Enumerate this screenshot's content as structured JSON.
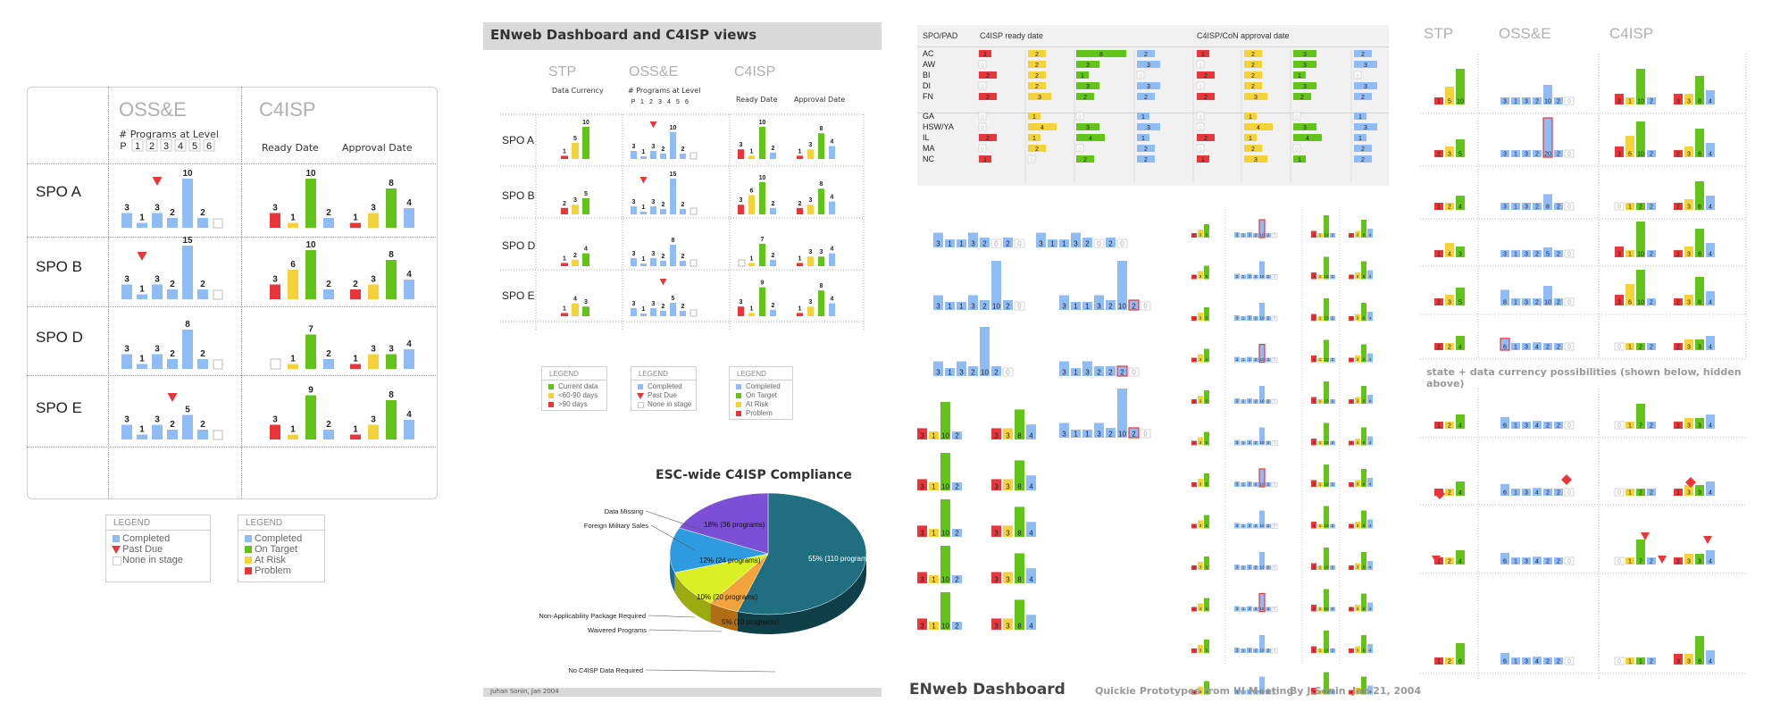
{
  "colors": {
    "blue": "#8fbcf4",
    "green": "#62c419",
    "yellow": "#f4d239",
    "red": "#e8363a",
    "teal": "#1f6f80",
    "purple": "#7b4fd6",
    "orange": "#f3a33c",
    "lime": "#d8f024",
    "gray": "#b0b0b0"
  },
  "panel1": {
    "headers": {
      "osse": "OSS&E",
      "c4isp": "C4ISP",
      "programs_at_level": "# Programs at Level",
      "levels": [
        "P",
        "1",
        "2",
        "3",
        "4",
        "5",
        "6"
      ],
      "ready": "Ready Date",
      "approval": "Approval Date"
    },
    "rows": [
      {
        "name": "SPO A",
        "osse": [
          3,
          1,
          3,
          2,
          10,
          2,
          0
        ],
        "past": 2,
        "ready": [
          3,
          1,
          10,
          2
        ],
        "approval": [
          1,
          3,
          8,
          4
        ]
      },
      {
        "name": "SPO B",
        "osse": [
          3,
          1,
          3,
          2,
          15,
          2,
          0
        ],
        "past": 1,
        "ready": [
          3,
          6,
          10,
          2
        ],
        "approval": [
          2,
          3,
          8,
          4
        ]
      },
      {
        "name": "SPO D",
        "osse": [
          3,
          1,
          3,
          2,
          8,
          2,
          0
        ],
        "past": -1,
        "ready": [
          0,
          1,
          7,
          2
        ],
        "approval": [
          1,
          3,
          3,
          4
        ]
      },
      {
        "name": "SPO E",
        "osse": [
          3,
          1,
          3,
          2,
          5,
          2,
          0
        ],
        "past": 3,
        "ready": [
          3,
          1,
          9,
          2
        ],
        "approval": [
          1,
          3,
          8,
          4
        ]
      }
    ],
    "legend1": {
      "title": "LEGEND",
      "items": [
        "Completed",
        "Past Due",
        "None in stage"
      ]
    },
    "legend2": {
      "title": "LEGEND",
      "items": [
        "Completed",
        "On Target",
        "At Risk",
        "Problem"
      ]
    }
  },
  "panel2": {
    "title": "ENweb Dashboard and C4ISP views",
    "headers": {
      "stp": "STP",
      "osse": "OSS&E",
      "c4isp": "C4ISP",
      "data_currency": "Data Currency",
      "programs_at_level": "# Programs at Level",
      "levels": [
        "P",
        "1",
        "2",
        "3",
        "4",
        "5",
        "6"
      ],
      "ready": "Ready Date",
      "approval": "Approval Date"
    },
    "rows": [
      {
        "name": "SPO A",
        "stp": [
          1,
          5,
          10
        ]
      },
      {
        "name": "SPO B",
        "stp": [
          2,
          3,
          5
        ]
      },
      {
        "name": "SPO D",
        "stp": [
          1,
          2,
          4
        ]
      },
      {
        "name": "SPO E",
        "stp": [
          1,
          4,
          3
        ]
      }
    ],
    "legend_stp": {
      "title": "LEGEND",
      "items": [
        "Current data",
        "<60-90 days",
        ">90 days"
      ]
    },
    "legend_osse": {
      "title": "LEGEND",
      "items": [
        "Completed",
        "Past Due",
        "None in stage"
      ]
    },
    "legend_c4isp": {
      "title": "LEGEND",
      "items": [
        "Completed",
        "On Target",
        "At Risk",
        "Problem"
      ]
    },
    "footer": "Juhan Sonin, Jan 2004"
  },
  "chart_data": {
    "type": "pie",
    "title": "ESC-wide C4ISP Compliance",
    "slices": [
      {
        "label": "No C4ISP Data Required",
        "percent": 55,
        "programs": 110,
        "text": "55% (110 programs)"
      },
      {
        "label": "Waivered Programs",
        "percent": 5,
        "programs": 10,
        "text": "5% (10 programs)"
      },
      {
        "label": "Non-Applicability Package Required",
        "percent": 10,
        "programs": 20,
        "text": "10% (20 programs)"
      },
      {
        "label": "Foreign Military Sales",
        "percent": 12,
        "programs": 24,
        "text": "12% (24 programs)"
      },
      {
        "label": "Data Missing",
        "percent": 18,
        "programs": 36,
        "text": "18% (36 programs)"
      }
    ]
  },
  "panel3": {
    "col_spo": "SPO/PAD",
    "col_ready": "C4ISP ready date",
    "col_approval": "C4ISP/CoN approval date",
    "rows": [
      {
        "name": "AC",
        "r": [
          1,
          2,
          8,
          2
        ],
        "a": [
          1,
          2,
          3,
          2
        ]
      },
      {
        "name": "AW",
        "r": [
          0,
          2,
          3,
          3
        ],
        "a": [
          0,
          2,
          3,
          3
        ]
      },
      {
        "name": "BI",
        "r": [
          2,
          2,
          1,
          0
        ],
        "a": [
          2,
          2,
          1,
          0
        ]
      },
      {
        "name": "DI",
        "r": [
          0,
          2,
          3,
          3
        ],
        "a": [
          0,
          2,
          3,
          3
        ]
      },
      {
        "name": "FN",
        "r": [
          2,
          3,
          2,
          2
        ],
        "a": [
          2,
          3,
          2,
          2
        ]
      },
      {
        "name": "GA",
        "r": [
          0,
          1,
          0,
          1
        ],
        "a": [
          0,
          1,
          0,
          1
        ]
      },
      {
        "name": "HSW/YA",
        "r": [
          0,
          4,
          3,
          3
        ],
        "a": [
          0,
          4,
          3,
          3
        ]
      },
      {
        "name": "IL",
        "r": [
          2,
          1,
          4,
          1
        ],
        "a": [
          2,
          1,
          4,
          1
        ]
      },
      {
        "name": "MA",
        "r": [
          0,
          2,
          0,
          2
        ],
        "a": [
          0,
          2,
          0,
          2
        ]
      },
      {
        "name": "NC",
        "r": [
          1,
          0,
          2,
          2
        ],
        "a": [
          1,
          3,
          1,
          2
        ]
      }
    ],
    "footer": {
      "title": "ENweb Dashboard",
      "subtitle": "Quickie Prototypes from UI Meeting",
      "author": "By J.Sonin",
      "date": "Jan 21, 2004"
    }
  },
  "panel4": {
    "headers": {
      "stp": "STP",
      "osse": "OSS&E",
      "c4isp": "C4ISP"
    },
    "caption": "state + data currency possibilities (shown below, hidden above)",
    "rows": [
      {
        "stp": [
          1,
          5,
          10
        ],
        "osse": [
          3,
          1,
          3,
          2,
          10,
          2,
          0
        ],
        "ready": [
          3,
          1,
          10,
          2
        ],
        "approval": [
          3,
          3,
          8,
          4
        ]
      },
      {
        "stp": [
          2,
          3,
          5
        ],
        "osse": [
          3,
          1,
          3,
          2,
          20,
          2,
          0
        ],
        "ready": [
          3,
          6,
          10,
          2
        ],
        "approval": [
          2,
          3,
          8,
          4
        ]
      },
      {
        "stp": [
          1,
          2,
          4
        ],
        "osse": [
          3,
          1,
          3,
          2,
          8,
          2,
          0
        ],
        "ready": [
          0,
          1,
          2,
          2
        ],
        "approval": [
          2,
          3,
          8,
          4
        ]
      },
      {
        "stp": [
          1,
          4,
          3
        ],
        "osse": [
          3,
          1,
          3,
          2,
          5,
          2,
          0
        ],
        "ready": [
          3,
          1,
          10,
          2
        ],
        "approval": [
          1,
          3,
          8,
          4
        ]
      },
      {
        "stp": [
          2,
          3,
          5
        ],
        "osse": [
          8,
          1,
          3,
          2,
          10,
          2,
          0
        ],
        "ready": [
          3,
          6,
          10,
          2
        ],
        "approval": [
          2,
          3,
          8,
          4
        ]
      },
      {
        "stp": [
          2,
          2,
          4
        ],
        "osse": [
          6,
          1,
          3,
          4,
          2,
          2,
          0
        ],
        "ready": [
          0,
          1,
          2,
          2
        ],
        "approval": [
          2,
          3,
          3,
          4
        ]
      },
      {
        "stp": [
          1,
          2,
          4
        ],
        "osse": [
          6,
          1,
          3,
          4,
          2,
          2,
          0
        ],
        "ready": [
          0,
          1,
          7,
          2
        ],
        "approval": [
          1,
          3,
          3,
          4
        ]
      },
      {
        "stp": [
          1,
          2,
          4
        ],
        "osse": [
          6,
          1,
          3,
          4,
          2,
          2,
          0
        ],
        "ready": [
          0,
          1,
          2,
          2
        ],
        "approval": [
          1,
          3,
          3,
          4
        ]
      },
      {
        "stp": [
          1,
          2,
          4
        ],
        "osse": [
          6,
          1,
          3,
          4,
          2,
          2,
          0
        ],
        "ready": [
          0,
          1,
          7,
          2
        ],
        "approval": [
          1,
          3,
          3,
          4
        ]
      },
      {
        "stp": [
          1,
          2,
          6
        ],
        "osse": [
          6,
          1,
          3,
          4,
          2,
          2,
          0
        ],
        "ready": [
          0,
          1,
          1,
          2
        ],
        "approval": [
          3,
          3,
          8,
          4
        ]
      }
    ]
  }
}
